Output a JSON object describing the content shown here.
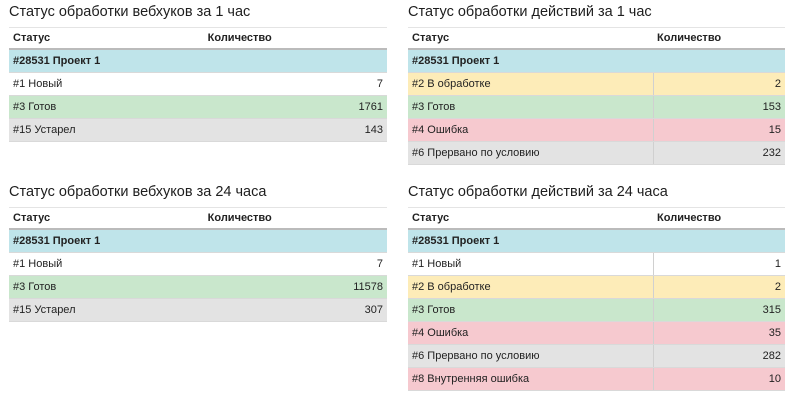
{
  "colors": {
    "group": "#bfe4ea",
    "processing": "#fdecb8",
    "done": "#c9e7cc",
    "error": "#f6c9cf",
    "muted": "#e3e3e3"
  },
  "panels": [
    {
      "title": "Статус обработки вебхуков за 1 час",
      "col_status": "Статус",
      "col_count": "Количество",
      "group": "#28531 Проект 1",
      "rows": [
        {
          "status": "#1 Новый",
          "count": "7",
          "kind": "new"
        },
        {
          "status": "#3 Готов",
          "count": "1761",
          "kind": "done"
        },
        {
          "status": "#15 Устарел",
          "count": "143",
          "kind": "expired"
        }
      ]
    },
    {
      "title": "Статус обработки действий за 1 час",
      "col_status": "Статус",
      "col_count": "Количество",
      "group": "#28531 Проект 1",
      "rows": [
        {
          "status": "#2 В обработке",
          "count": "2",
          "kind": "processing"
        },
        {
          "status": "#3 Готов",
          "count": "153",
          "kind": "done"
        },
        {
          "status": "#4 Ошибка",
          "count": "15",
          "kind": "error"
        },
        {
          "status": "#6 Прервано по условию",
          "count": "232",
          "kind": "interrupted"
        }
      ]
    },
    {
      "title": "Статус обработки вебхуков за 24 часа",
      "col_status": "Статус",
      "col_count": "Количество",
      "group": "#28531 Проект 1",
      "rows": [
        {
          "status": "#1 Новый",
          "count": "7",
          "kind": "new"
        },
        {
          "status": "#3 Готов",
          "count": "11578",
          "kind": "done"
        },
        {
          "status": "#15 Устарел",
          "count": "307",
          "kind": "expired"
        }
      ]
    },
    {
      "title": "Статус обработки действий за 24 часа",
      "col_status": "Статус",
      "col_count": "Количество",
      "group": "#28531 Проект 1",
      "rows": [
        {
          "status": "#1 Новый",
          "count": "1",
          "kind": "new"
        },
        {
          "status": "#2 В обработке",
          "count": "2",
          "kind": "processing"
        },
        {
          "status": "#3 Готов",
          "count": "315",
          "kind": "done"
        },
        {
          "status": "#4 Ошибка",
          "count": "35",
          "kind": "error"
        },
        {
          "status": "#6 Прервано по условию",
          "count": "282",
          "kind": "interrupted"
        },
        {
          "status": "#8 Внутренняя ошибка",
          "count": "10",
          "kind": "internal"
        }
      ]
    }
  ]
}
